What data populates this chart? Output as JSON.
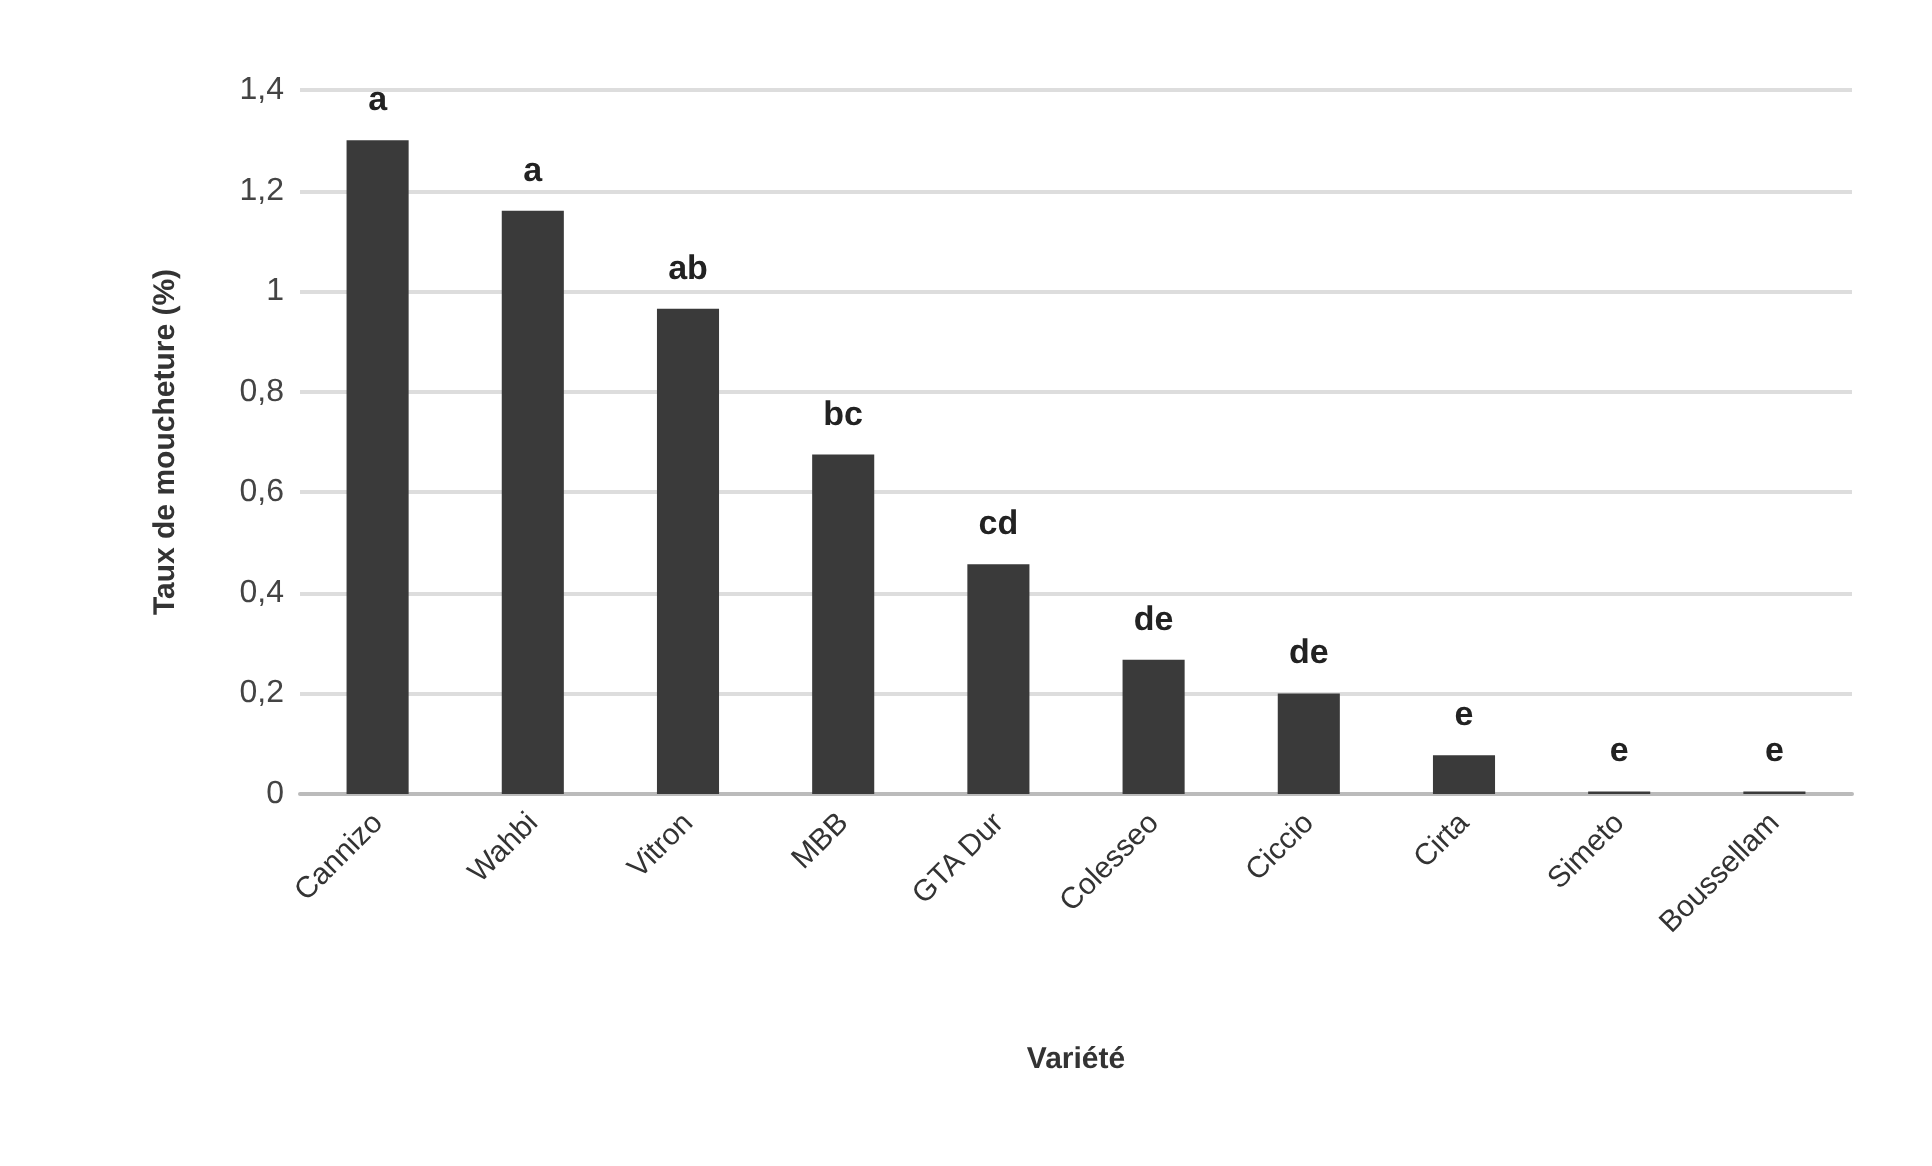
{
  "chart_data": {
    "type": "bar",
    "xlabel": "Variété",
    "ylabel": "Taux de moucheture (%)",
    "categories": [
      "Cannizo",
      "Wahbi",
      "Vitron",
      "MBB",
      "GTA Dur",
      "Colesseo",
      "Ciccio",
      "Cirta",
      "Simeto",
      "Boussellam"
    ],
    "values": [
      1.3,
      1.16,
      0.965,
      0.675,
      0.457,
      0.267,
      0.2,
      0.077,
      0.005,
      0.005
    ],
    "color": "#3a3a3a",
    "ylim": [
      0,
      1.4
    ],
    "yticks": [
      {
        "value": 0,
        "label": "0"
      },
      {
        "value": 0.2,
        "label": "0,2"
      },
      {
        "value": 0.4,
        "label": "0,4"
      },
      {
        "value": 0.6,
        "label": "0,6"
      },
      {
        "value": 0.8,
        "label": "0,8"
      },
      {
        "value": 1,
        "label": "1"
      },
      {
        "value": 1.2,
        "label": "1,2"
      },
      {
        "value": 1.4,
        "label": "1,4"
      }
    ],
    "grid": "y",
    "annotations": [
      {
        "text": "a",
        "x": "Cannizo",
        "y": 1.3
      },
      {
        "text": "a",
        "x": "Wahbi",
        "y": 1.16
      },
      {
        "text": "ab",
        "x": "Vitron",
        "y": 0.965
      },
      {
        "text": "bc",
        "x": "MBB",
        "y": 0.675
      },
      {
        "text": "cd",
        "x": "GTA Dur",
        "y": 0.457
      },
      {
        "text": "de",
        "x": "Colesseo",
        "y": 0.267
      },
      {
        "text": "de",
        "x": "Ciccio",
        "y": 0.2
      },
      {
        "text": "e",
        "x": "Cirta",
        "y": 0.077
      },
      {
        "text": "e",
        "x": "Simeto",
        "y": 0.005
      },
      {
        "text": "e",
        "x": "Boussellam",
        "y": 0.005
      }
    ]
  }
}
